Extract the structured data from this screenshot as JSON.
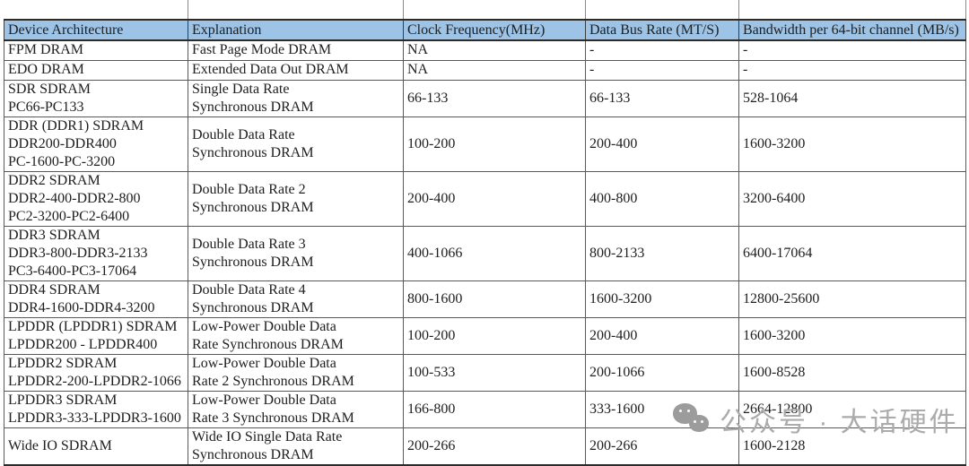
{
  "colors": {
    "header_bg": "#9DC3E6",
    "border_heavy": "#2b2b2b",
    "border_inner": "#595959",
    "top_strip_green": "#d9ece1",
    "watermark_gray": "#ababab"
  },
  "watermark": {
    "icon": "wechat-icon",
    "text": "公众号 · 大话硬件"
  },
  "table": {
    "columns": [
      {
        "label": "Device Architecture"
      },
      {
        "label": "Explanation"
      },
      {
        "label": "Clock Frequency(MHz)"
      },
      {
        "label": "Data Bus Rate (MT/S)"
      },
      {
        "label": "Bandwidth per 64-bit channel (MB/s)"
      }
    ],
    "rows": [
      {
        "arch": [
          "FPM DRAM"
        ],
        "explanation": [
          "Fast Page Mode DRAM"
        ],
        "clock": "NA",
        "bus": "-",
        "bandwidth": "-"
      },
      {
        "arch": [
          "EDO DRAM"
        ],
        "explanation": [
          "Extended Data Out DRAM"
        ],
        "clock": "NA",
        "bus": "-",
        "bandwidth": "-"
      },
      {
        "arch": [
          "SDR SDRAM",
          "PC66-PC133"
        ],
        "explanation": [
          "Single Data Rate",
          "Synchronous DRAM"
        ],
        "clock": "66-133",
        "bus": "66-133",
        "bandwidth": "528-1064"
      },
      {
        "arch": [
          "DDR (DDR1) SDRAM",
          "DDR200-DDR400",
          "PC-1600-PC-3200"
        ],
        "explanation": [
          "Double Data Rate",
          "Synchronous DRAM"
        ],
        "clock": "100-200",
        "bus": "200-400",
        "bandwidth": "1600-3200"
      },
      {
        "arch": [
          "DDR2 SDRAM",
          "DDR2-400-DDR2-800",
          "PC2-3200-PC2-6400"
        ],
        "explanation": [
          "Double Data Rate 2",
          "Synchronous DRAM"
        ],
        "clock": "200-400",
        "bus": "400-800",
        "bandwidth": "3200-6400"
      },
      {
        "arch": [
          "DDR3 SDRAM",
          "DDR3-800-DDR3-2133",
          "PC3-6400-PC3-17064"
        ],
        "explanation": [
          "Double Data Rate 3",
          "Synchronous DRAM"
        ],
        "clock": "400-1066",
        "bus": "800-2133",
        "bandwidth": "6400-17064"
      },
      {
        "arch": [
          "DDR4 SDRAM",
          "DDR4-1600-DDR4-3200"
        ],
        "explanation": [
          "Double Data Rate 4",
          "Synchronous DRAM"
        ],
        "clock": "800-1600",
        "bus": "1600-3200",
        "bandwidth": "12800-25600"
      },
      {
        "arch": [
          "LPDDR (LPDDR1) SDRAM",
          "LPDDR200 - LPDDR400"
        ],
        "explanation": [
          "Low-Power Double Data",
          "Rate Synchronous DRAM"
        ],
        "clock": "100-200",
        "bus": "200-400",
        "bandwidth": "1600-3200"
      },
      {
        "arch": [
          "LPDDR2 SDRAM",
          "LPDDR2-200-LPDDR2-1066"
        ],
        "explanation": [
          "Low-Power Double Data",
          "Rate 2 Synchronous DRAM"
        ],
        "clock": "100-533",
        "bus": "200-1066",
        "bandwidth": "1600-8528"
      },
      {
        "arch": [
          "LPDDR3 SDRAM",
          "LPDDR3-333-LPDDR3-1600"
        ],
        "explanation": [
          "Low-Power Double Data",
          "Rate 3 Synchronous DRAM"
        ],
        "clock": "166-800",
        "bus": "333-1600",
        "bandwidth": "2664-12800"
      },
      {
        "arch": [
          "Wide IO SDRAM"
        ],
        "explanation": [
          "Wide IO Single Data Rate",
          "Synchronous DRAM"
        ],
        "clock": "200-266",
        "bus": "200-266",
        "bandwidth": "1600-2128"
      }
    ]
  }
}
